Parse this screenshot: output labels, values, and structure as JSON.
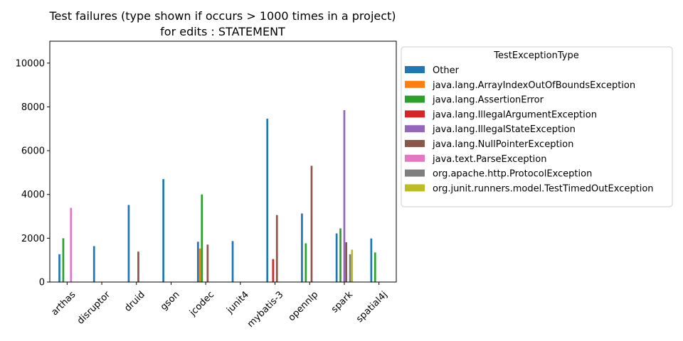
{
  "chart_data": {
    "type": "bar",
    "title": "Test failures (type shown if occurs > 1000 times in a project)",
    "subtitle": "for edits : STATEMENT",
    "xlabel": "",
    "ylabel": "",
    "ylim": [
      0,
      11000
    ],
    "yticks": [
      0,
      2000,
      4000,
      6000,
      8000,
      10000
    ],
    "grid": false,
    "legend": {
      "title": "TestExceptionType",
      "placement": "outside-right"
    },
    "categories": [
      "arthas",
      "disruptor",
      "druid",
      "gson",
      "jcodec",
      "junit4",
      "mybatis-3",
      "opennlp",
      "spark",
      "spatial4j"
    ],
    "series": [
      {
        "name": "Other",
        "color": "#1f77b4",
        "values": [
          1270,
          1640,
          3520,
          4700,
          1840,
          1870,
          7460,
          3130,
          2220,
          1990
        ]
      },
      {
        "name": "java.lang.ArrayIndexOutOfBoundsException",
        "color": "#ff7f0e",
        "values": [
          0,
          0,
          0,
          0,
          1530,
          0,
          0,
          0,
          0,
          0
        ]
      },
      {
        "name": "java.lang.AssertionError",
        "color": "#2ca02c",
        "values": [
          2000,
          0,
          0,
          0,
          4000,
          0,
          0,
          1770,
          2450,
          1350
        ]
      },
      {
        "name": "java.lang.IllegalArgumentException",
        "color": "#d62728",
        "values": [
          0,
          0,
          0,
          0,
          0,
          0,
          1050,
          0,
          0,
          0
        ]
      },
      {
        "name": "java.lang.IllegalStateException",
        "color": "#9467bd",
        "values": [
          0,
          0,
          0,
          0,
          0,
          0,
          0,
          0,
          7850,
          0
        ]
      },
      {
        "name": "java.lang.NullPointerException",
        "color": "#8c564b",
        "values": [
          0,
          0,
          1390,
          0,
          1710,
          0,
          3060,
          5310,
          1820,
          0
        ]
      },
      {
        "name": "java.text.ParseException",
        "color": "#e377c2",
        "values": [
          3390,
          0,
          0,
          0,
          0,
          0,
          0,
          0,
          0,
          0
        ]
      },
      {
        "name": "org.apache.http.ProtocolException",
        "color": "#7f7f7f",
        "values": [
          0,
          0,
          0,
          0,
          0,
          0,
          0,
          0,
          1270,
          0
        ]
      },
      {
        "name": "org.junit.runners.model.TestTimedOutException",
        "color": "#bcbd22",
        "values": [
          0,
          0,
          0,
          0,
          0,
          0,
          0,
          0,
          1480,
          0
        ]
      }
    ]
  }
}
